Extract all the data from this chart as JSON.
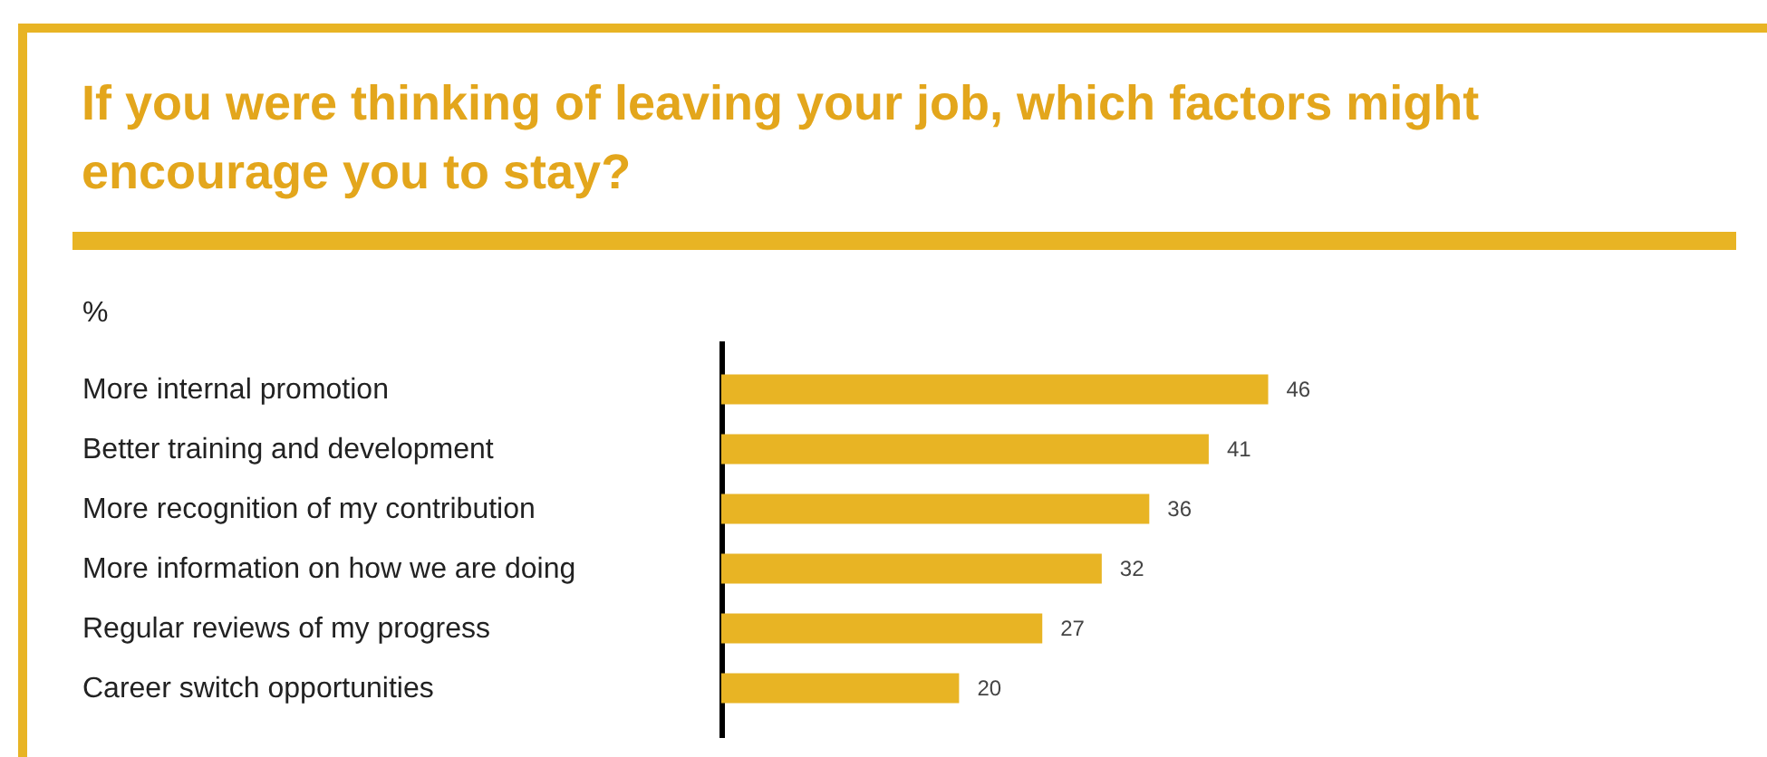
{
  "chart_data": {
    "type": "bar",
    "orientation": "horizontal",
    "title": "If you were thinking of leaving your job, which factors might encourage you to stay?",
    "ylabel": "%",
    "categories": [
      "More internal promotion",
      "Better training and development",
      "More recognition of my contribution",
      "More information on how we are doing",
      "Regular reviews of my progress",
      "Career switch opportunities"
    ],
    "values": [
      46,
      41,
      36,
      32,
      27,
      20
    ],
    "color": "#e8b424",
    "data_labels": true
  }
}
